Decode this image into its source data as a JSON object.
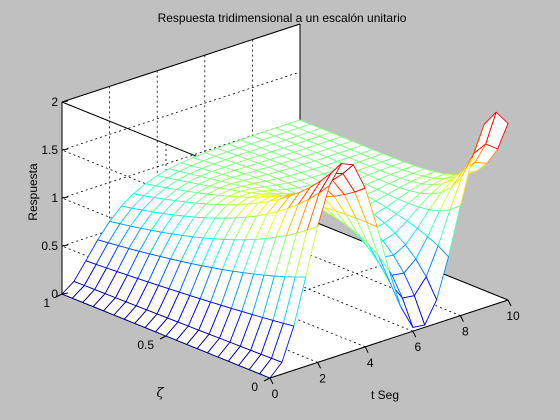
{
  "chart_data": {
    "type": "surface-mesh",
    "title": "Respuesta tridimensional a un escalón unitario",
    "xlabel": "t Seg",
    "ylabel": "ζ",
    "zlabel": "Respuesta",
    "xlim": [
      0,
      10
    ],
    "ylim": [
      0,
      1
    ],
    "zlim": [
      0,
      2
    ],
    "xticks": [
      "0",
      "2",
      "4",
      "6",
      "8",
      "10"
    ],
    "yticks": [
      "0",
      "0.5",
      "1"
    ],
    "zticks": [
      "0",
      "0.5",
      "1",
      "1.5",
      "2"
    ],
    "grid": true,
    "colormap": "jet",
    "t_samples": [
      0,
      0.5,
      1,
      1.5,
      2,
      2.5,
      3,
      3.5,
      4,
      4.5,
      5,
      5.5,
      6,
      6.5,
      7,
      7.5,
      8,
      8.5,
      9,
      9.5,
      10
    ],
    "zeta_samples": [
      0,
      0.05,
      0.1,
      0.15,
      0.2,
      0.25,
      0.3,
      0.35,
      0.4,
      0.45,
      0.5,
      0.55,
      0.6,
      0.65,
      0.7,
      0.75,
      0.8,
      0.85,
      0.9,
      0.95,
      1
    ],
    "surface": "1 - exp(-zeta*t)*(cos(sqrt(1-zeta^2)*t) + zeta/sqrt(1-zeta^2)*sin(sqrt(1-zeta^2)*t))"
  }
}
